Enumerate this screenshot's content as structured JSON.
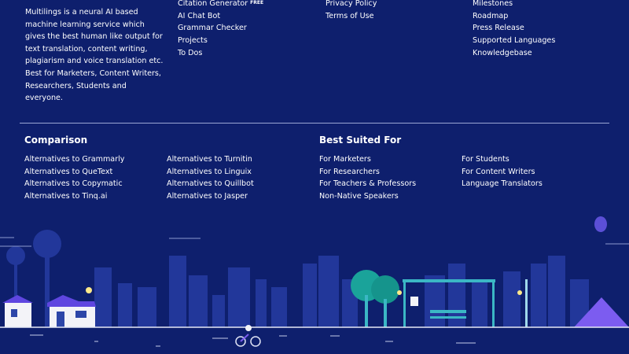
{
  "about": {
    "text": "Multilings is a neural AI based machine learning service which gives the best human like output for text translation, content writing, plagiarism and voice translation etc. Best for Marketers, Content Writers, Researchers, Students and everyone."
  },
  "tools": {
    "links": [
      "Citation Generator",
      "AI Chat Bot",
      "Grammar Checker",
      "Projects",
      "To Dos"
    ],
    "badge": "FREE"
  },
  "legal": {
    "links": [
      "Privacy Policy",
      "Terms of Use"
    ]
  },
  "company": {
    "links": [
      "Milestones",
      "Roadmap",
      "Press Release",
      "Supported Languages",
      "Knowledgebase"
    ]
  },
  "comparison": {
    "title": "Comparison",
    "columns": [
      [
        "Alternatives to Grammarly",
        "Alternatives to QueText",
        "Alternatives to Copymatic",
        "Alternatives to Tinq.ai"
      ],
      [
        "Alternatives to Turnitin",
        "Alternatives to Linguix",
        "Alternatives to Quillbot",
        "Alternatives to Jasper"
      ]
    ]
  },
  "best_suited": {
    "title": "Best Suited For",
    "columns": [
      [
        "For Marketers",
        "For Researchers",
        "For Teachers & Professors",
        "Non-Native Speakers"
      ],
      [
        "For Students",
        "For Content Writers",
        "Language Translators"
      ]
    ]
  }
}
